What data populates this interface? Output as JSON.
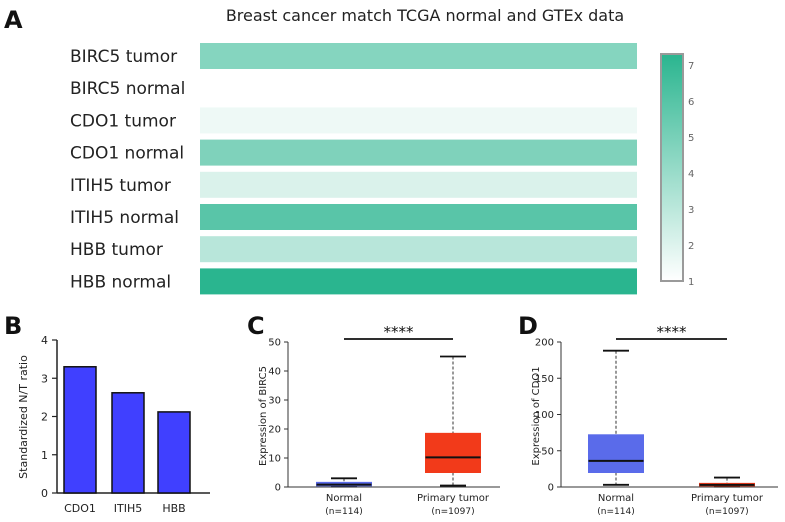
{
  "panels": {
    "A": {
      "letter": "A"
    },
    "B": {
      "letter": "B"
    },
    "C": {
      "letter": "C"
    },
    "D": {
      "letter": "D"
    }
  },
  "chart_data": [
    {
      "id": "A",
      "type": "heatmap",
      "title": "Breast cancer match TCGA normal and GTEx data",
      "rows": [
        "BIRC5 tumor",
        "BIRC5 normal",
        "CDO1 tumor",
        "CDO1 normal",
        "ITIH5 tumor",
        "ITIH5 normal",
        "HBB tumor",
        "HBB normal"
      ],
      "values": [
        4.6,
        0.9,
        1.5,
        4.8,
        2.1,
        5.9,
        3.1,
        7.3
      ],
      "colorbar": {
        "min": 1,
        "max": 7.3,
        "ticks": [
          1,
          2,
          3,
          4,
          5,
          6,
          7
        ],
        "low_color": "#ffffff",
        "high_color": "#2ab58f"
      }
    },
    {
      "id": "B",
      "type": "bar",
      "categories": [
        "CDO1",
        "ITIH5",
        "HBB"
      ],
      "values": [
        3.3,
        2.62,
        2.12
      ],
      "ylabel": "Standardized N/T ratio",
      "ylim": [
        0,
        4
      ],
      "yticks": [
        0,
        1,
        2,
        3,
        4
      ],
      "bar_color": "#4040ff"
    },
    {
      "id": "C",
      "type": "box",
      "ylabel": "Expression of BIRC5",
      "ylim": [
        0,
        50
      ],
      "yticks": [
        0,
        10,
        20,
        30,
        40,
        50
      ],
      "groups": [
        {
          "name": "Normal",
          "n": "(n=114)",
          "min": 0.2,
          "q1": 0.4,
          "median": 0.8,
          "q3": 1.6,
          "max": 3.0,
          "color": "#5a6bea"
        },
        {
          "name": "Primary tumor",
          "n": "(n=1097)",
          "min": 0.5,
          "q1": 5.0,
          "median": 10.2,
          "q3": 18.5,
          "max": 45.0,
          "color": "#f23a1a"
        }
      ],
      "significance": "****"
    },
    {
      "id": "D",
      "type": "box",
      "ylabel": "Expression of CDO1",
      "ylim": [
        0,
        200
      ],
      "yticks": [
        0,
        50,
        100,
        150,
        200
      ],
      "groups": [
        {
          "name": "Normal",
          "n": "(n=114)",
          "min": 3,
          "q1": 20,
          "median": 36,
          "q3": 72,
          "max": 188,
          "color": "#5a6bea"
        },
        {
          "name": "Primary tumor",
          "n": "(n=1097)",
          "min": 0.5,
          "q1": 1.5,
          "median": 3,
          "q3": 5,
          "max": 13,
          "color": "#f23a1a"
        }
      ],
      "significance": "****"
    }
  ]
}
